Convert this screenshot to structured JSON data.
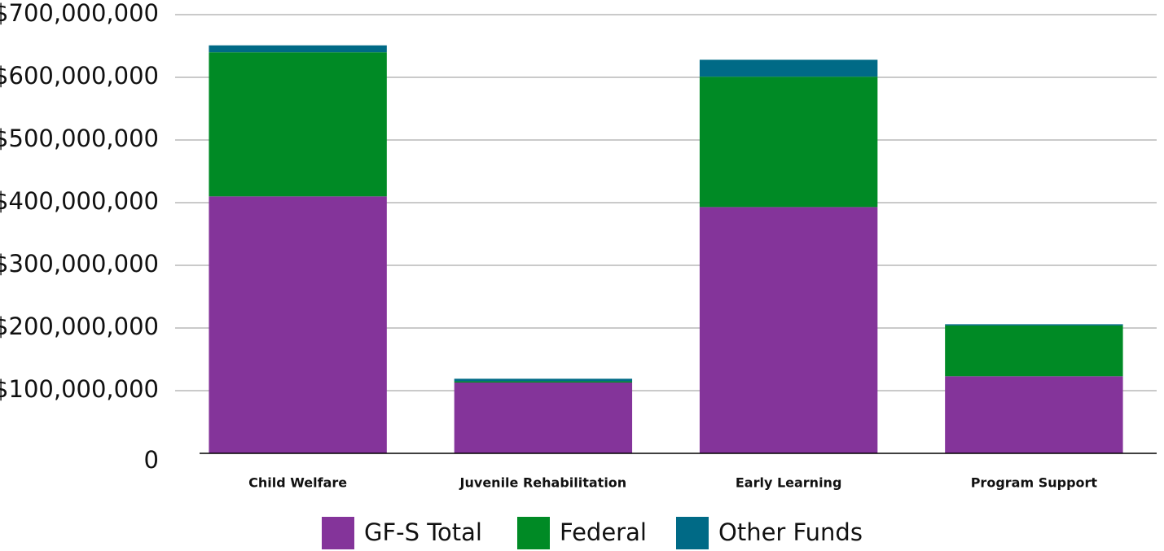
{
  "chart_data": {
    "type": "stacked_bar",
    "categories": [
      "Child Welfare",
      "Juvenile Rehabilitation",
      "Early Learning",
      "Program Support"
    ],
    "series": [
      {
        "name": "GF-S Total",
        "color": "#84349a",
        "values": [
          410000000,
          113000000,
          393000000,
          123000000
        ]
      },
      {
        "name": "Federal",
        "color": "#008a25",
        "values": [
          230000000,
          2000000,
          208000000,
          81000000
        ]
      },
      {
        "name": "Other Funds",
        "color": "#006a86",
        "values": [
          11000000,
          4000000,
          27000000,
          2000000
        ]
      }
    ],
    "ylim": [
      0,
      700000000
    ],
    "yticks": [
      0,
      {
        "value": 100000000,
        "label": "$100,000,000"
      },
      {
        "value": 200000000,
        "label": "$200,000,000"
      },
      {
        "value": 300000000,
        "label": "$300,000,000"
      },
      {
        "value": 400000000,
        "label": "$400,000,000"
      },
      {
        "value": 500000000,
        "label": "$500,000,000"
      },
      {
        "value": 600000000,
        "label": "$600,000,000"
      },
      {
        "value": 700000000,
        "label": "$700,000,000"
      }
    ],
    "grid": true,
    "legend": "bottom"
  }
}
